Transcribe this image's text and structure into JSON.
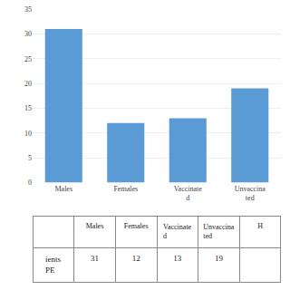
{
  "chart_data": [
    {
      "type": "bar",
      "categories": [
        "Males",
        "Females",
        "Vaccinate\nd",
        "Unvaccina\nted"
      ],
      "values": [
        31,
        12,
        13,
        19
      ],
      "color": "#5B9BD5",
      "ylim": [
        0,
        35
      ],
      "yticks": [
        0,
        5,
        10,
        15,
        20,
        25,
        30,
        35
      ],
      "grid": true
    },
    {
      "type": "table",
      "categories": [
        "Males",
        "Females",
        "Vaccinate\nd",
        "Unvaccina\nted",
        "H"
      ],
      "series": [
        {
          "name": "ients\nPE",
          "values": [
            31,
            12,
            13,
            19,
            null
          ]
        }
      ]
    }
  ]
}
